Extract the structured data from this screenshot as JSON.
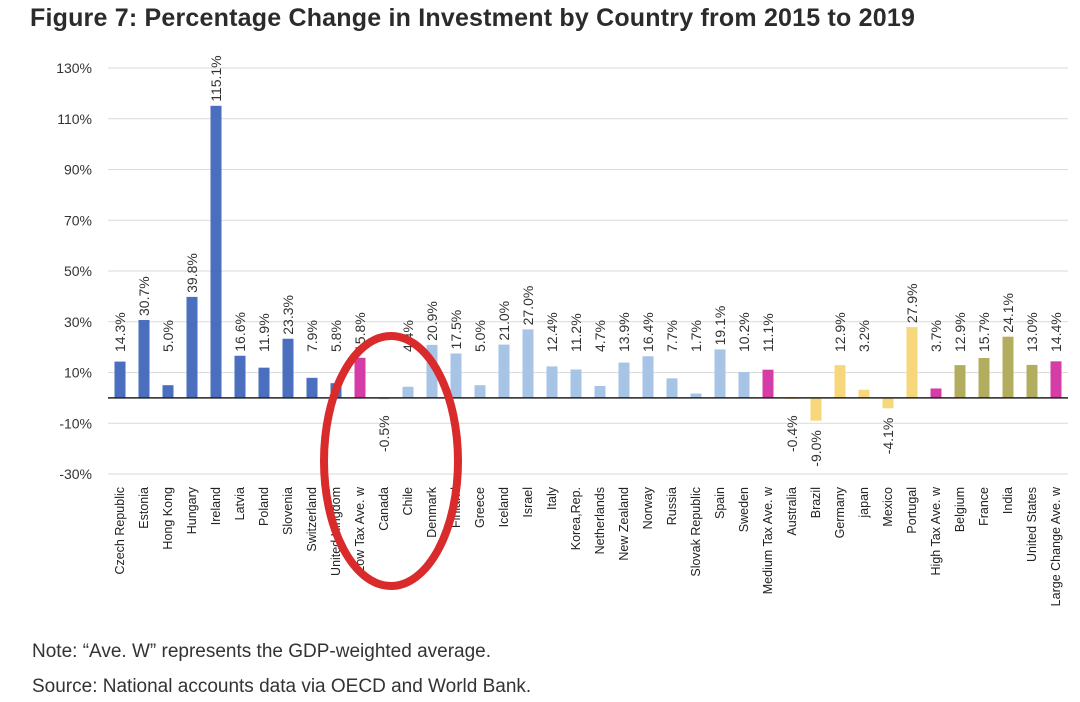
{
  "title": "Figure 7: Percentage Change in Investment by Country from 2015 to 2019",
  "note": "Note: “Ave. W” represents the GDP-weighted average.",
  "source": "Source: National accounts data via OECD and World Bank.",
  "colors": {
    "low_tax": "#4a6fbe",
    "medium_tax": "#a7c4e6",
    "high_tax": "#f7d77c",
    "large_change": "#b3ad60",
    "average": "#d63ca6",
    "annotation_circle": "#d92b2b"
  },
  "chart_data": {
    "type": "bar",
    "title": "Figure 7: Percentage Change in Investment by Country from 2015 to 2019",
    "xlabel": "",
    "ylabel": "",
    "ylim": [
      -30,
      130
    ],
    "yticks": [
      "-30%",
      "-10%",
      "10%",
      "30%",
      "50%",
      "70%",
      "90%",
      "110%",
      "130%"
    ],
    "ytick_values": [
      -30,
      -10,
      10,
      30,
      50,
      70,
      90,
      110,
      130
    ],
    "grid": true,
    "legend": "none",
    "categories": [
      "Czech Republic",
      "Estonia",
      "Hong Kong",
      "Hungary",
      "Ireland",
      "Latvia",
      "Poland",
      "Slovenia",
      "Switzerland",
      "United Kingdom",
      "Low Tax Ave. w",
      "Canada",
      "Chile",
      "Denmark",
      "Finland",
      "Greece",
      "Iceland",
      "Israel",
      "Italy",
      "Korea,Rep.",
      "Netherlands",
      "New Zealand",
      "Norway",
      "Russia",
      "Slovak Republic",
      "Spain",
      "Sweden",
      "Medium Tax Ave. w",
      "Australia",
      "Brazil",
      "Germany",
      "japan",
      "Mexico",
      "Portugal",
      "High Tax Ave. w",
      "Belgium",
      "France",
      "India",
      "United States",
      "Large Change Ave. w"
    ],
    "values": [
      14.3,
      30.7,
      5.0,
      39.8,
      115.1,
      16.6,
      11.9,
      23.3,
      7.9,
      5.8,
      15.8,
      -0.5,
      4.4,
      20.9,
      17.5,
      5.0,
      21.0,
      27.0,
      12.4,
      11.2,
      4.7,
      13.9,
      16.4,
      7.7,
      1.7,
      19.1,
      10.2,
      11.1,
      -0.4,
      -9.0,
      12.9,
      3.2,
      -4.1,
      27.9,
      3.7,
      12.9,
      15.7,
      24.1,
      13.0,
      14.4
    ],
    "data_labels": [
      "14.3%",
      "30.7%",
      "5.0%",
      "39.8%",
      "115.1%",
      "16.6%",
      "11.9%",
      "23.3%",
      "7.9%",
      "5.8%",
      "15.8%",
      "-0.5%",
      "4.4%",
      "20.9%",
      "17.5%",
      "5.0%",
      "21.0%",
      "27.0%",
      "12.4%",
      "11.2%",
      "4.7%",
      "13.9%",
      "16.4%",
      "7.7%",
      "1.7%",
      "19.1%",
      "10.2%",
      "11.1%",
      "-0.4%",
      "-9.0%",
      "12.9%",
      "3.2%",
      "-4.1%",
      "27.9%",
      "3.7%",
      "12.9%",
      "15.7%",
      "24.1%",
      "13.0%",
      "14.4%"
    ],
    "groups": [
      "low_tax",
      "low_tax",
      "low_tax",
      "low_tax",
      "low_tax",
      "low_tax",
      "low_tax",
      "low_tax",
      "low_tax",
      "low_tax",
      "average",
      "medium_tax",
      "medium_tax",
      "medium_tax",
      "medium_tax",
      "medium_tax",
      "medium_tax",
      "medium_tax",
      "medium_tax",
      "medium_tax",
      "medium_tax",
      "medium_tax",
      "medium_tax",
      "medium_tax",
      "medium_tax",
      "medium_tax",
      "medium_tax",
      "average",
      "high_tax",
      "high_tax",
      "high_tax",
      "high_tax",
      "high_tax",
      "high_tax",
      "average",
      "large_change",
      "large_change",
      "large_change",
      "large_change",
      "average"
    ],
    "annotation": {
      "shape": "ellipse",
      "target_categories": [
        "Low Tax Ave. w",
        "Canada",
        "Chile"
      ]
    }
  }
}
